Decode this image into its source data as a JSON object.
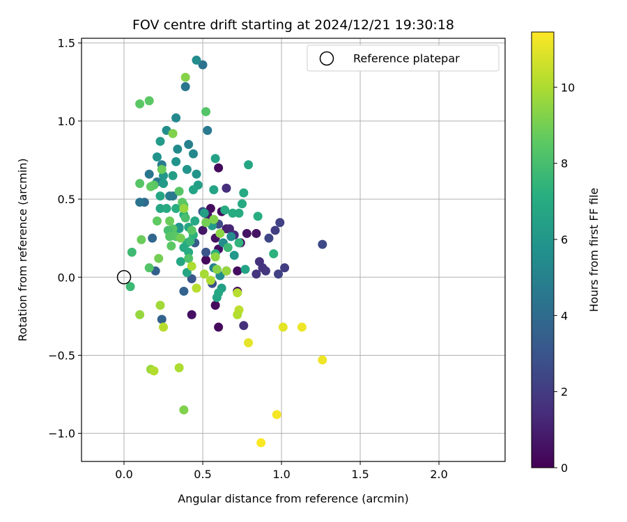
{
  "chart_data": {
    "type": "scatter",
    "title": "FOV centre drift starting at 2024/12/21 19:30:18",
    "xlabel": "Angular distance from reference (arcmin)",
    "ylabel": "Rotation from reference (arcmin)",
    "xlim": [
      -0.27,
      2.42
    ],
    "ylim": [
      -1.18,
      1.53
    ],
    "xticks": [
      0.0,
      0.5,
      1.0,
      1.5,
      2.0
    ],
    "xtick_labels": [
      "0.0",
      "0.5",
      "1.0",
      "1.5",
      "2.0"
    ],
    "yticks": [
      -1.0,
      -0.5,
      0.0,
      0.5,
      1.0,
      1.5
    ],
    "ytick_labels": [
      "−1.0",
      "−0.5",
      "0.0",
      "0.5",
      "1.0",
      "1.5"
    ],
    "grid": true,
    "legend": {
      "position": "top-right",
      "label": "Reference platepar",
      "marker": "open-circle"
    },
    "reference_point": {
      "x": 0.0,
      "y": 0.0
    },
    "colorbar": {
      "label": "Hours from first FF file",
      "colormap": "viridis",
      "min": 0,
      "max": 11.45,
      "ticks": [
        0,
        2,
        4,
        6,
        8,
        10
      ],
      "tick_labels": [
        "0",
        "2",
        "4",
        "6",
        "8",
        "10"
      ]
    },
    "points": [
      {
        "x": 0.6,
        "y": 0.7,
        "h": 0.3
      },
      {
        "x": 0.6,
        "y": -0.32,
        "h": 0.3
      },
      {
        "x": 0.52,
        "y": 0.11,
        "h": 0.3
      },
      {
        "x": 0.55,
        "y": 0.44,
        "h": 0.4
      },
      {
        "x": 0.58,
        "y": 0.25,
        "h": 0.6
      },
      {
        "x": 0.6,
        "y": 0.18,
        "h": 0.5
      },
      {
        "x": 0.62,
        "y": 0.42,
        "h": 0.3
      },
      {
        "x": 0.65,
        "y": 0.04,
        "h": 0.5
      },
      {
        "x": 0.58,
        "y": -0.18,
        "h": 0.3
      },
      {
        "x": 0.72,
        "y": 0.04,
        "h": 0.4
      },
      {
        "x": 0.72,
        "y": -0.09,
        "h": 0.3
      },
      {
        "x": 0.74,
        "y": 0.22,
        "h": 0.5
      },
      {
        "x": 0.78,
        "y": 0.28,
        "h": 0.6
      },
      {
        "x": 0.84,
        "y": 0.28,
        "h": 0.6
      },
      {
        "x": 0.43,
        "y": -0.24,
        "h": 0.5
      },
      {
        "x": 0.5,
        "y": 0.3,
        "h": 0.7
      },
      {
        "x": 0.53,
        "y": 0.4,
        "h": 0.7
      },
      {
        "x": 0.65,
        "y": 0.31,
        "h": 1.0
      },
      {
        "x": 0.67,
        "y": 0.31,
        "h": 1.2
      },
      {
        "x": 0.7,
        "y": 0.27,
        "h": 1.3
      },
      {
        "x": 0.76,
        "y": -0.31,
        "h": 1.6
      },
      {
        "x": 0.65,
        "y": 0.57,
        "h": 1.5
      },
      {
        "x": 0.86,
        "y": 0.1,
        "h": 1.6
      },
      {
        "x": 0.84,
        "y": 0.02,
        "h": 1.7
      },
      {
        "x": 0.88,
        "y": 0.06,
        "h": 1.7
      },
      {
        "x": 0.9,
        "y": 0.04,
        "h": 1.8
      },
      {
        "x": 0.96,
        "y": 0.3,
        "h": 2.1
      },
      {
        "x": 0.99,
        "y": 0.35,
        "h": 2.2
      },
      {
        "x": 0.98,
        "y": 0.02,
        "h": 2.2
      },
      {
        "x": 1.02,
        "y": 0.06,
        "h": 2.0
      },
      {
        "x": 0.92,
        "y": 0.25,
        "h": 2.4
      },
      {
        "x": 1.26,
        "y": 0.21,
        "h": 2.5
      },
      {
        "x": 0.6,
        "y": 0.34,
        "h": 2.6
      },
      {
        "x": 0.56,
        "y": -0.04,
        "h": 2.8
      },
      {
        "x": 0.52,
        "y": 0.16,
        "h": 3.0
      },
      {
        "x": 0.5,
        "y": 0.42,
        "h": 3.0
      },
      {
        "x": 0.45,
        "y": 0.22,
        "h": 3.3
      },
      {
        "x": 0.43,
        "y": -0.01,
        "h": 3.1
      },
      {
        "x": 0.38,
        "y": -0.09,
        "h": 3.6
      },
      {
        "x": 0.24,
        "y": -0.27,
        "h": 3.6
      },
      {
        "x": 0.18,
        "y": 0.25,
        "h": 3.8
      },
      {
        "x": 0.2,
        "y": 0.04,
        "h": 3.5
      },
      {
        "x": 0.13,
        "y": 0.48,
        "h": 4.0
      },
      {
        "x": 0.1,
        "y": 0.48,
        "h": 4.4
      },
      {
        "x": 0.16,
        "y": 0.66,
        "h": 4.5
      },
      {
        "x": 0.21,
        "y": 0.61,
        "h": 4.6
      },
      {
        "x": 0.24,
        "y": 0.72,
        "h": 4.7
      },
      {
        "x": 0.29,
        "y": 0.52,
        "h": 4.8
      },
      {
        "x": 0.31,
        "y": 0.52,
        "h": 4.6
      },
      {
        "x": 0.39,
        "y": 1.22,
        "h": 4.5
      },
      {
        "x": 0.5,
        "y": 1.36,
        "h": 4.3
      },
      {
        "x": 0.46,
        "y": 1.39,
        "h": 5.5
      },
      {
        "x": 0.53,
        "y": 0.94,
        "h": 4.6
      },
      {
        "x": 0.33,
        "y": 1.02,
        "h": 5.3
      },
      {
        "x": 0.34,
        "y": 0.82,
        "h": 5.4
      },
      {
        "x": 0.41,
        "y": 0.85,
        "h": 5.0
      },
      {
        "x": 0.44,
        "y": 0.79,
        "h": 5.3
      },
      {
        "x": 0.27,
        "y": 0.94,
        "h": 5.6
      },
      {
        "x": 0.21,
        "y": 0.77,
        "h": 5.8
      },
      {
        "x": 0.23,
        "y": 0.87,
        "h": 6.2
      },
      {
        "x": 0.33,
        "y": 0.74,
        "h": 5.8
      },
      {
        "x": 0.4,
        "y": 0.69,
        "h": 5.9
      },
      {
        "x": 0.46,
        "y": 0.66,
        "h": 5.9
      },
      {
        "x": 0.25,
        "y": 0.65,
        "h": 6.0
      },
      {
        "x": 0.31,
        "y": 0.65,
        "h": 6.3
      },
      {
        "x": 0.25,
        "y": 0.6,
        "h": 6.2
      },
      {
        "x": 0.47,
        "y": 0.59,
        "h": 6.4
      },
      {
        "x": 0.58,
        "y": 0.76,
        "h": 6.5
      },
      {
        "x": 0.79,
        "y": 0.72,
        "h": 6.7
      },
      {
        "x": 0.57,
        "y": 0.56,
        "h": 6.6
      },
      {
        "x": 0.44,
        "y": 0.56,
        "h": 6.6
      },
      {
        "x": 0.23,
        "y": 0.52,
        "h": 6.7
      },
      {
        "x": 0.23,
        "y": 0.44,
        "h": 6.7
      },
      {
        "x": 0.27,
        "y": 0.44,
        "h": 6.9
      },
      {
        "x": 0.33,
        "y": 0.44,
        "h": 7.1
      },
      {
        "x": 0.38,
        "y": 0.4,
        "h": 7.2
      },
      {
        "x": 0.51,
        "y": 0.41,
        "h": 6.4
      },
      {
        "x": 0.64,
        "y": 0.43,
        "h": 6.9
      },
      {
        "x": 0.69,
        "y": 0.41,
        "h": 7.0
      },
      {
        "x": 0.73,
        "y": 0.41,
        "h": 7.0
      },
      {
        "x": 0.75,
        "y": 0.47,
        "h": 6.9
      },
      {
        "x": 0.76,
        "y": 0.54,
        "h": 6.9
      },
      {
        "x": 0.85,
        "y": 0.39,
        "h": 7.1
      },
      {
        "x": 0.73,
        "y": 0.22,
        "h": 7.4
      },
      {
        "x": 0.68,
        "y": 0.26,
        "h": 5.5
      },
      {
        "x": 0.7,
        "y": 0.14,
        "h": 6.0
      },
      {
        "x": 0.63,
        "y": 0.22,
        "h": 5.5
      },
      {
        "x": 0.57,
        "y": 0.06,
        "h": 5.0
      },
      {
        "x": 0.61,
        "y": 0.01,
        "h": 5.5
      },
      {
        "x": 0.59,
        "y": -0.13,
        "h": 6.6
      },
      {
        "x": 0.62,
        "y": -0.07,
        "h": 6.4
      },
      {
        "x": 0.6,
        "y": -0.1,
        "h": 6.8
      },
      {
        "x": 0.77,
        "y": 0.05,
        "h": 6.6
      },
      {
        "x": 0.95,
        "y": 0.15,
        "h": 7.3
      },
      {
        "x": 0.56,
        "y": 0.33,
        "h": 6.2
      },
      {
        "x": 0.66,
        "y": 0.19,
        "h": 7.7
      },
      {
        "x": 0.58,
        "y": 0.15,
        "h": 7.1
      },
      {
        "x": 0.45,
        "y": 0.36,
        "h": 6.8
      },
      {
        "x": 0.41,
        "y": 0.32,
        "h": 6.8
      },
      {
        "x": 0.4,
        "y": 0.22,
        "h": 7.0
      },
      {
        "x": 0.38,
        "y": 0.19,
        "h": 6.9
      },
      {
        "x": 0.41,
        "y": 0.16,
        "h": 7.0
      },
      {
        "x": 0.4,
        "y": 0.03,
        "h": 6.7
      },
      {
        "x": 0.36,
        "y": 0.1,
        "h": 6.8
      },
      {
        "x": 0.35,
        "y": 0.31,
        "h": 6.8
      },
      {
        "x": 0.35,
        "y": 0.32,
        "h": 6.0
      },
      {
        "x": 0.44,
        "y": 0.27,
        "h": 7.3
      },
      {
        "x": 0.42,
        "y": 0.23,
        "h": 7.6
      },
      {
        "x": 0.41,
        "y": 0.12,
        "h": 8.2
      },
      {
        "x": 0.43,
        "y": 0.3,
        "h": 8.4
      },
      {
        "x": 0.39,
        "y": 0.38,
        "h": 8.0
      },
      {
        "x": 0.38,
        "y": 0.46,
        "h": 8.2
      },
      {
        "x": 0.35,
        "y": 0.55,
        "h": 8.4
      },
      {
        "x": 0.37,
        "y": 0.48,
        "h": 8.5
      },
      {
        "x": 0.33,
        "y": 0.26,
        "h": 8.5
      },
      {
        "x": 0.31,
        "y": 0.31,
        "h": 8.4
      },
      {
        "x": 0.28,
        "y": 0.3,
        "h": 8.0
      },
      {
        "x": 0.29,
        "y": 0.26,
        "h": 8.4
      },
      {
        "x": 0.3,
        "y": 0.2,
        "h": 8.5
      },
      {
        "x": 0.29,
        "y": 0.36,
        "h": 8.8
      },
      {
        "x": 0.21,
        "y": 0.36,
        "h": 8.6
      },
      {
        "x": 0.19,
        "y": 0.59,
        "h": 8.5
      },
      {
        "x": 0.17,
        "y": 0.58,
        "h": 8.6
      },
      {
        "x": 0.1,
        "y": 0.6,
        "h": 8.4
      },
      {
        "x": 0.24,
        "y": 0.69,
        "h": 8.8
      },
      {
        "x": 0.31,
        "y": 0.92,
        "h": 9.2
      },
      {
        "x": 0.1,
        "y": 1.11,
        "h": 8.5
      },
      {
        "x": 0.16,
        "y": 1.13,
        "h": 8.5
      },
      {
        "x": 0.39,
        "y": 1.28,
        "h": 9.3
      },
      {
        "x": 0.52,
        "y": 1.06,
        "h": 8.3
      },
      {
        "x": 0.38,
        "y": 0.44,
        "h": 9.6
      },
      {
        "x": 0.36,
        "y": 0.25,
        "h": 9.0
      },
      {
        "x": 0.22,
        "y": 0.12,
        "h": 9.0
      },
      {
        "x": 0.16,
        "y": 0.06,
        "h": 8.3
      },
      {
        "x": 0.05,
        "y": 0.16,
        "h": 7.8
      },
      {
        "x": 0.11,
        "y": 0.24,
        "h": 8.8
      },
      {
        "x": 0.04,
        "y": -0.06,
        "h": 7.7
      },
      {
        "x": 0.52,
        "y": 0.35,
        "h": 9.0
      },
      {
        "x": 0.57,
        "y": 0.37,
        "h": 9.2
      },
      {
        "x": 0.61,
        "y": 0.28,
        "h": 9.4
      },
      {
        "x": 0.58,
        "y": 0.13,
        "h": 9.5
      },
      {
        "x": 0.59,
        "y": 0.05,
        "h": 9.3
      },
      {
        "x": 0.65,
        "y": 0.04,
        "h": 9.6
      },
      {
        "x": 0.51,
        "y": 0.02,
        "h": 9.9
      },
      {
        "x": 0.46,
        "y": -0.07,
        "h": 10.2
      },
      {
        "x": 0.43,
        "y": 0.07,
        "h": 10.0
      },
      {
        "x": 0.55,
        "y": -0.02,
        "h": 10.0
      },
      {
        "x": 0.72,
        "y": -0.1,
        "h": 10.2
      },
      {
        "x": 0.73,
        "y": -0.21,
        "h": 10.3
      },
      {
        "x": 0.72,
        "y": -0.24,
        "h": 10.1
      },
      {
        "x": 0.23,
        "y": -0.18,
        "h": 9.8
      },
      {
        "x": 0.1,
        "y": -0.24,
        "h": 9.6
      },
      {
        "x": 0.25,
        "y": -0.32,
        "h": 10.2
      },
      {
        "x": 0.17,
        "y": -0.59,
        "h": 9.7
      },
      {
        "x": 0.19,
        "y": -0.6,
        "h": 10.1
      },
      {
        "x": 0.35,
        "y": -0.58,
        "h": 10.0
      },
      {
        "x": 0.38,
        "y": -0.85,
        "h": 9.2
      },
      {
        "x": 0.79,
        "y": -0.42,
        "h": 11.0
      },
      {
        "x": 1.01,
        "y": -0.32,
        "h": 11.0
      },
      {
        "x": 1.13,
        "y": -0.32,
        "h": 11.2
      },
      {
        "x": 1.26,
        "y": -0.53,
        "h": 11.2
      },
      {
        "x": 0.97,
        "y": -0.88,
        "h": 11.3
      },
      {
        "x": 0.87,
        "y": -1.06,
        "h": 11.4
      }
    ]
  }
}
